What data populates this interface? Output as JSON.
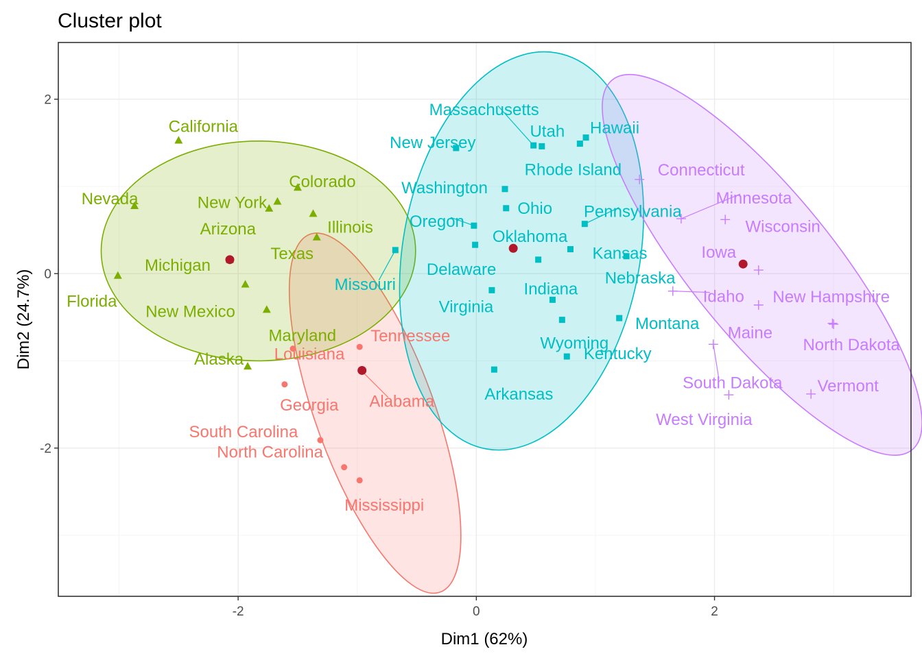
{
  "chart_data": {
    "type": "scatter",
    "title": "Cluster plot",
    "xlabel": "Dim1 (62%)",
    "ylabel": "Dim2 (24.7%)",
    "xlim": [
      -3.51,
      3.65
    ],
    "ylim": [
      -3.7,
      2.65
    ],
    "xticks": [
      -2,
      0,
      2
    ],
    "yticks": [
      -2,
      0,
      2
    ],
    "grid": true,
    "legend": "none",
    "clusters": [
      {
        "id": "1",
        "color": "#F8766D",
        "fill": "#F8766D",
        "shape": "circle",
        "ellipse": {
          "cx": -0.85,
          "cy": -1.6,
          "rx": 1.6,
          "ry": 0.68,
          "angle_deg": -70
        },
        "centroid": {
          "x": -0.96,
          "y": -1.11
        },
        "points": [
          {
            "name": "Tennessee",
            "x": -0.98,
            "y": -0.84
          },
          {
            "name": "Louisiana",
            "x": -1.54,
            "y": -0.86
          },
          {
            "name": "Alabama",
            "x": -0.96,
            "y": -1.12
          },
          {
            "name": "Georgia",
            "x": -1.61,
            "y": -1.27
          },
          {
            "name": "South Carolina",
            "x": -1.31,
            "y": -1.91
          },
          {
            "name": "North Carolina",
            "x": -1.11,
            "y": -2.22
          },
          {
            "name": "Mississippi",
            "x": -0.98,
            "y": -2.37
          }
        ]
      },
      {
        "id": "2",
        "color": "#7CAE00",
        "fill": "#7CAE00",
        "shape": "triangle",
        "ellipse": {
          "cx": -1.83,
          "cy": 0.26,
          "rx": 1.32,
          "ry": 1.26,
          "angle_deg": 0
        },
        "centroid": {
          "x": -2.07,
          "y": 0.16
        },
        "points": [
          {
            "name": "California",
            "x": -2.5,
            "y": 1.53
          },
          {
            "name": "Colorado",
            "x": -1.5,
            "y": 0.99
          },
          {
            "name": "Nevada",
            "x": -2.87,
            "y": 0.78
          },
          {
            "name": "New York",
            "x": -1.67,
            "y": 0.83
          },
          {
            "name": "Arizona",
            "x": -1.74,
            "y": 0.75
          },
          {
            "name": "Illinois",
            "x": -1.37,
            "y": 0.69
          },
          {
            "name": "Texas",
            "x": -1.34,
            "y": 0.42
          },
          {
            "name": "Michigan",
            "x": -2.07,
            "y": 0.16
          },
          {
            "name": "Florida",
            "x": -3.01,
            "y": -0.02
          },
          {
            "name": "New Mexico",
            "x": -1.94,
            "y": -0.12
          },
          {
            "name": "Maryland",
            "x": -1.76,
            "y": -0.41
          },
          {
            "name": "Alaska",
            "x": -1.92,
            "y": -1.06
          }
        ]
      },
      {
        "id": "3",
        "color": "#00BFC4",
        "fill": "#00BFC4",
        "shape": "square",
        "ellipse": {
          "cx": 0.38,
          "cy": 0.26,
          "rx": 1.69,
          "ry": 1.36,
          "angle_deg": 80
        },
        "centroid": {
          "x": 0.31,
          "y": 0.29
        },
        "points": [
          {
            "name": "Massachusetts",
            "x": 0.48,
            "y": 1.47
          },
          {
            "name": "Utah",
            "x": 0.55,
            "y": 1.46
          },
          {
            "name": "Hawaii",
            "x": 0.92,
            "y": 1.56
          },
          {
            "name": "New Jersey",
            "x": -0.17,
            "y": 1.44
          },
          {
            "name": "Rhode Island",
            "x": 0.87,
            "y": 1.49
          },
          {
            "name": "Washington",
            "x": 0.24,
            "y": 0.97
          },
          {
            "name": "Ohio",
            "x": 0.25,
            "y": 0.75
          },
          {
            "name": "Oregon",
            "x": -0.02,
            "y": 0.55
          },
          {
            "name": "Pennsylvania",
            "x": 0.91,
            "y": 0.57
          },
          {
            "name": "Oklahoma",
            "x": -0.01,
            "y": 0.33
          },
          {
            "name": "Kansas",
            "x": 0.79,
            "y": 0.28
          },
          {
            "name": "Nebraska",
            "x": 1.26,
            "y": 0.2
          },
          {
            "name": "Missouri",
            "x": -0.68,
            "y": 0.27
          },
          {
            "name": "Delaware",
            "x": 0.52,
            "y": 0.16
          },
          {
            "name": "Indiana",
            "x": 0.13,
            "y": -0.19
          },
          {
            "name": "Virginia",
            "x": 0.64,
            "y": -0.3
          },
          {
            "name": "Montana",
            "x": 1.2,
            "y": -0.51
          },
          {
            "name": "Wyoming",
            "x": 0.72,
            "y": -0.53
          },
          {
            "name": "Kentucky",
            "x": 0.76,
            "y": -0.95
          },
          {
            "name": "Arkansas",
            "x": 0.15,
            "y": -1.1
          }
        ]
      },
      {
        "id": "4",
        "color": "#C77CFF",
        "fill": "#C77CFF",
        "shape": "plus",
        "ellipse": {
          "cx": 2.4,
          "cy": 0.1,
          "rx": 2.0,
          "ry": 0.82,
          "angle_deg": -51
        },
        "centroid": {
          "x": 2.24,
          "y": 0.11
        },
        "points": [
          {
            "name": "Connecticut",
            "x": 1.37,
            "y": 1.08
          },
          {
            "name": "Minnesota",
            "x": 1.72,
            "y": 0.63
          },
          {
            "name": "Wisconsin",
            "x": 2.09,
            "y": 0.62
          },
          {
            "name": "Iowa",
            "x": 2.37,
            "y": 0.04
          },
          {
            "name": "Idaho",
            "x": 1.65,
            "y": -0.2
          },
          {
            "name": "New Hampshire",
            "x": 2.37,
            "y": -0.36
          },
          {
            "name": "Maine",
            "x": 2.99,
            "y": -0.57
          },
          {
            "name": "North Dakota",
            "x": 3.0,
            "y": -0.58
          },
          {
            "name": "South Dakota",
            "x": 1.99,
            "y": -0.81
          },
          {
            "name": "Vermont",
            "x": 2.81,
            "y": -1.38
          },
          {
            "name": "West Virginia",
            "x": 2.12,
            "y": -1.39
          }
        ]
      }
    ]
  }
}
